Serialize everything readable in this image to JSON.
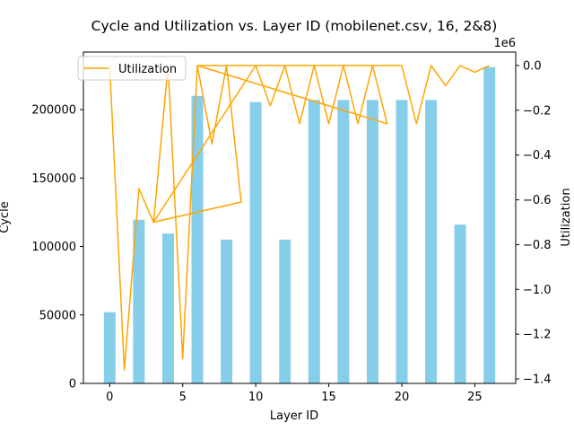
{
  "chart_data": {
    "type": "bar+line",
    "title": "Cycle and Utilization vs. Layer ID (mobilenet.csv, 16, 2&8)",
    "xlabel": "Layer ID",
    "ylabel_left": "Cycle",
    "ylabel_right": "Utilization",
    "right_axis_multiplier": "1e6",
    "xlim": [
      -1.8,
      27.8
    ],
    "xticks": [
      0,
      5,
      10,
      15,
      20,
      25
    ],
    "ylim_left": [
      0,
      242000
    ],
    "yticks_left": [
      0,
      50000,
      100000,
      150000,
      200000
    ],
    "ylim_right": [
      -1.42,
      0.06
    ],
    "yticks_right": [
      0.0,
      -0.2,
      -0.4,
      -0.6,
      -0.8,
      -1.0,
      -1.2,
      -1.4
    ],
    "grid": false,
    "legend_position": "upper-left",
    "colors": {
      "bar": "#87ceeb",
      "line": "#ffa500"
    },
    "bar_series": {
      "name": "Cycle",
      "x": [
        0,
        2,
        4,
        6,
        8,
        10,
        12,
        14,
        16,
        18,
        20,
        22,
        24,
        26
      ],
      "values": [
        52000,
        119500,
        109500,
        210000,
        105000,
        205500,
        105000,
        207000,
        207000,
        207000,
        207000,
        207000,
        116000,
        231000
      ]
    },
    "line_series": {
      "name": "Utilization",
      "x": [
        0,
        1,
        2,
        3,
        4,
        5,
        6,
        7,
        8,
        9,
        10,
        11,
        12,
        13,
        14,
        15,
        16,
        17,
        18,
        19,
        20,
        21,
        22,
        23,
        24,
        25,
        26
      ],
      "values": [
        0.0,
        -1.36,
        -0.55,
        -0.7,
        0.0,
        -1.31,
        0.0,
        -0.35,
        0.0,
        -0.61,
        0.0,
        -0.18,
        0.0,
        -0.26,
        0.0,
        -0.26,
        0.0,
        -0.26,
        0.0,
        -0.26,
        0.0,
        -0.26,
        0.0,
        -0.09,
        0.0,
        -0.03,
        0.0
      ],
      "plot_order": [
        0,
        1,
        2,
        3,
        4,
        5,
        6,
        7,
        8,
        9,
        3,
        10,
        11,
        12,
        13,
        14,
        15,
        16,
        17,
        18,
        19,
        6,
        20,
        21,
        22,
        23,
        24,
        25,
        26
      ]
    }
  }
}
